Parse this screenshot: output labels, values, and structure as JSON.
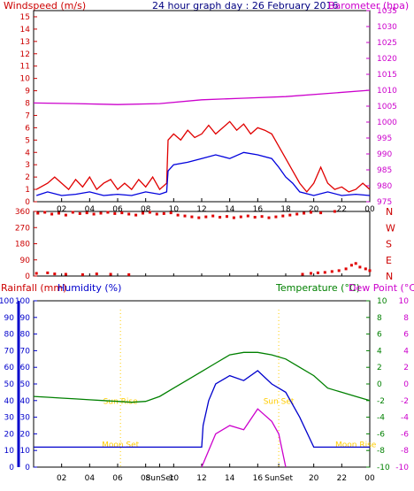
{
  "chart_data": [
    {
      "id": "wind",
      "type": "line",
      "title": "24 hour graph day : 26 February 2016",
      "left_label": "Windspeed (m/s)",
      "right_label": "Barometer (hpa)",
      "x_ticks": [
        "02",
        "04",
        "06",
        "08",
        "10",
        "12",
        "14",
        "16",
        "18",
        "20",
        "22",
        "00"
      ],
      "y_left_ticks": [
        "0",
        "1",
        "2",
        "3",
        "4",
        "5",
        "6",
        "7",
        "8",
        "9",
        "10",
        "11",
        "12",
        "13",
        "14",
        "15"
      ],
      "y_right_ticks": [
        "975",
        "980",
        "985",
        "990",
        "995",
        "1000",
        "1005",
        "1010",
        "1015",
        "1020",
        "1025",
        "1030",
        "1035"
      ],
      "ylim_left": [
        0,
        15.5
      ],
      "ylim_right": [
        975,
        1035
      ],
      "colors": {
        "gust": "#e00000",
        "average": "#0000dd",
        "barometer": "#cc00cc",
        "left_axis": "#cc0000",
        "right_axis": "#cc00cc",
        "title": "#000080"
      },
      "series": [
        {
          "key": "gust",
          "values": [
            [
              0.2,
              1
            ],
            [
              1,
              1.5
            ],
            [
              1.5,
              2
            ],
            [
              2,
              1.5
            ],
            [
              2.5,
              1
            ],
            [
              3,
              1.8
            ],
            [
              3.5,
              1.2
            ],
            [
              4,
              2
            ],
            [
              4.5,
              1
            ],
            [
              5,
              1.5
            ],
            [
              5.5,
              1.8
            ],
            [
              6,
              1
            ],
            [
              6.5,
              1.5
            ],
            [
              7,
              1
            ],
            [
              7.5,
              1.8
            ],
            [
              8,
              1.2
            ],
            [
              8.5,
              2
            ],
            [
              9,
              1
            ],
            [
              9.5,
              1.5
            ],
            [
              9.6,
              5
            ],
            [
              10,
              5.5
            ],
            [
              10.5,
              5
            ],
            [
              11,
              5.8
            ],
            [
              11.5,
              5.2
            ],
            [
              12,
              5.5
            ],
            [
              12.5,
              6.2
            ],
            [
              13,
              5.5
            ],
            [
              13.5,
              6
            ],
            [
              14,
              6.5
            ],
            [
              14.5,
              5.8
            ],
            [
              15,
              6.3
            ],
            [
              15.5,
              5.5
            ],
            [
              16,
              6
            ],
            [
              16.5,
              5.8
            ],
            [
              17,
              5.5
            ],
            [
              17.5,
              4.5
            ],
            [
              18,
              3.5
            ],
            [
              18.5,
              2.5
            ],
            [
              19,
              1.5
            ],
            [
              19.5,
              0.8
            ],
            [
              20,
              1.5
            ],
            [
              20.5,
              2.8
            ],
            [
              21,
              1.5
            ],
            [
              21.5,
              1
            ],
            [
              22,
              1.2
            ],
            [
              22.5,
              0.8
            ],
            [
              23,
              1
            ],
            [
              23.5,
              1.5
            ],
            [
              24,
              1
            ]
          ]
        },
        {
          "key": "average",
          "values": [
            [
              0.2,
              0.5
            ],
            [
              1,
              0.8
            ],
            [
              2,
              0.5
            ],
            [
              3,
              0.6
            ],
            [
              4,
              0.8
            ],
            [
              5,
              0.5
            ],
            [
              6,
              0.6
            ],
            [
              7,
              0.5
            ],
            [
              8,
              0.8
            ],
            [
              9,
              0.6
            ],
            [
              9.5,
              0.8
            ],
            [
              9.6,
              2.5
            ],
            [
              10,
              3
            ],
            [
              11,
              3.2
            ],
            [
              12,
              3.5
            ],
            [
              13,
              3.8
            ],
            [
              14,
              3.5
            ],
            [
              15,
              4
            ],
            [
              16,
              3.8
            ],
            [
              17,
              3.5
            ],
            [
              17.5,
              2.8
            ],
            [
              18,
              2
            ],
            [
              18.5,
              1.5
            ],
            [
              19,
              0.8
            ],
            [
              20,
              0.5
            ],
            [
              21,
              0.8
            ],
            [
              22,
              0.5
            ],
            [
              23,
              0.6
            ],
            [
              24,
              0.5
            ]
          ]
        },
        {
          "key": "barometer",
          "axis": "right",
          "values": [
            [
              0,
              1006
            ],
            [
              3,
              1005.8
            ],
            [
              6,
              1005.5
            ],
            [
              9,
              1005.8
            ],
            [
              12,
              1007
            ],
            [
              15,
              1007.5
            ],
            [
              18,
              1008
            ],
            [
              21,
              1009
            ],
            [
              24,
              1010
            ]
          ]
        }
      ]
    },
    {
      "id": "direction",
      "type": "scatter",
      "x_ticks": [
        "02",
        "04",
        "06",
        "08",
        "10",
        "12",
        "14",
        "16",
        "18",
        "20",
        "22",
        "00"
      ],
      "y_left_ticks": [
        "360",
        "270",
        "180",
        "90",
        "0"
      ],
      "y_right_ticks": [
        "N",
        "W",
        "S",
        "E",
        "N"
      ],
      "ylim": [
        0,
        360
      ],
      "color": "#e00000",
      "points": [
        [
          0.3,
          350
        ],
        [
          0.8,
          355
        ],
        [
          1.3,
          345
        ],
        [
          1.8,
          350
        ],
        [
          2.3,
          340
        ],
        [
          2.8,
          355
        ],
        [
          3.3,
          348
        ],
        [
          3.8,
          352
        ],
        [
          4.3,
          345
        ],
        [
          4.8,
          350
        ],
        [
          5.3,
          355
        ],
        [
          5.8,
          348
        ],
        [
          6.3,
          352
        ],
        [
          6.8,
          345
        ],
        [
          7.3,
          340
        ],
        [
          7.8,
          350
        ],
        [
          8.3,
          355
        ],
        [
          8.8,
          345
        ],
        [
          9.3,
          348
        ],
        [
          9.8,
          352
        ],
        [
          10.3,
          340
        ],
        [
          10.8,
          335
        ],
        [
          11.3,
          330
        ],
        [
          11.8,
          325
        ],
        [
          12.3,
          330
        ],
        [
          12.8,
          335
        ],
        [
          13.3,
          328
        ],
        [
          13.8,
          332
        ],
        [
          14.3,
          325
        ],
        [
          14.8,
          330
        ],
        [
          15.3,
          335
        ],
        [
          15.8,
          328
        ],
        [
          16.3,
          332
        ],
        [
          16.8,
          325
        ],
        [
          17.3,
          330
        ],
        [
          17.8,
          335
        ],
        [
          18.3,
          340
        ],
        [
          18.8,
          345
        ],
        [
          19.3,
          350
        ],
        [
          19.8,
          355
        ],
        [
          20.5,
          352
        ],
        [
          21.5,
          360
        ],
        [
          0.2,
          15
        ],
        [
          1,
          18
        ],
        [
          1.5,
          12
        ],
        [
          2.3,
          10
        ],
        [
          3.5,
          8
        ],
        [
          4.5,
          12
        ],
        [
          5.5,
          10
        ],
        [
          6.8,
          8
        ],
        [
          19.2,
          10
        ],
        [
          19.8,
          15
        ],
        [
          20.3,
          18
        ],
        [
          20.8,
          20
        ],
        [
          21.3,
          25
        ],
        [
          21.8,
          30
        ],
        [
          22.3,
          40
        ],
        [
          22.7,
          60
        ],
        [
          23,
          70
        ],
        [
          23.3,
          50
        ],
        [
          23.7,
          40
        ],
        [
          24,
          30
        ]
      ]
    },
    {
      "id": "temperature",
      "type": "line",
      "left_label_1": "Rainfall (mm)",
      "left_label_2": "Humidity (%)",
      "right_label_1": "Temperature (°C)",
      "right_label_2": "Dew Point (°C)",
      "x_ticks": [
        "02",
        "04",
        "06",
        "08",
        "SunSet",
        "10",
        "12",
        "14",
        "16",
        "SunSet",
        "20",
        "22",
        "00"
      ],
      "y_rain_ticks": [
        "0",
        "10",
        "20",
        "30",
        "40",
        "50",
        "60",
        "70",
        "80",
        "90",
        "100"
      ],
      "y_humidity_ticks": [
        "0",
        "10",
        "20",
        "30",
        "40",
        "50",
        "60",
        "70",
        "80",
        "90",
        "100"
      ],
      "y_temp_ticks": [
        "10",
        "8",
        "6",
        "4",
        "2",
        "0",
        "-2",
        "-4",
        "-6",
        "-8",
        "-10"
      ],
      "y_dew_ticks": [
        "10",
        "8",
        "6",
        "4",
        "2",
        "0",
        "-2",
        "-4",
        "-6",
        "-8",
        "-10"
      ],
      "ylim_pct": [
        0,
        100
      ],
      "ylim_temp": [
        -10,
        10
      ],
      "annotations": [
        "Sun Rise",
        "Moon Set",
        "Sun Set",
        "Moon Rise"
      ],
      "colors": {
        "humidity": "#0000cc",
        "temperature": "#008000",
        "dewpoint": "#cc00cc",
        "rain": "#cc0000",
        "annotation": "#ffcc00"
      },
      "series": [
        {
          "key": "temperature",
          "axis": "temp",
          "values": [
            [
              0,
              -1.5
            ],
            [
              1,
              -1.6
            ],
            [
              2,
              -1.7
            ],
            [
              3,
              -1.8
            ],
            [
              4,
              -1.9
            ],
            [
              5,
              -2
            ],
            [
              6,
              -2.1
            ],
            [
              7,
              -2.2
            ],
            [
              8,
              -2.1
            ],
            [
              9,
              -1.5
            ],
            [
              10,
              -0.5
            ],
            [
              11,
              0.5
            ],
            [
              12,
              1.5
            ],
            [
              13,
              2.5
            ],
            [
              14,
              3.5
            ],
            [
              15,
              3.8
            ],
            [
              16,
              3.8
            ],
            [
              17,
              3.5
            ],
            [
              18,
              3
            ],
            [
              19,
              2
            ],
            [
              20,
              1
            ],
            [
              21,
              -0.5
            ],
            [
              22,
              -1
            ],
            [
              23,
              -1.5
            ],
            [
              24,
              -2
            ]
          ]
        },
        {
          "key": "humidity",
          "axis": "pct",
          "values": [
            [
              0,
              12
            ],
            [
              4,
              12
            ],
            [
              8,
              12
            ],
            [
              12,
              12
            ],
            [
              12.1,
              25
            ],
            [
              12.5,
              40
            ],
            [
              13,
              50
            ],
            [
              14,
              55
            ],
            [
              15,
              52
            ],
            [
              16,
              58
            ],
            [
              17,
              50
            ],
            [
              18,
              45
            ],
            [
              19,
              30
            ],
            [
              20,
              12
            ],
            [
              24,
              12
            ]
          ]
        },
        {
          "key": "dewpoint",
          "axis": "temp",
          "values": [
            [
              12,
              -10
            ],
            [
              13,
              -6
            ],
            [
              14,
              -5
            ],
            [
              15,
              -5.5
            ],
            [
              16,
              -3
            ],
            [
              17,
              -4.5
            ],
            [
              17.5,
              -6
            ],
            [
              18,
              -10
            ]
          ]
        }
      ]
    }
  ]
}
